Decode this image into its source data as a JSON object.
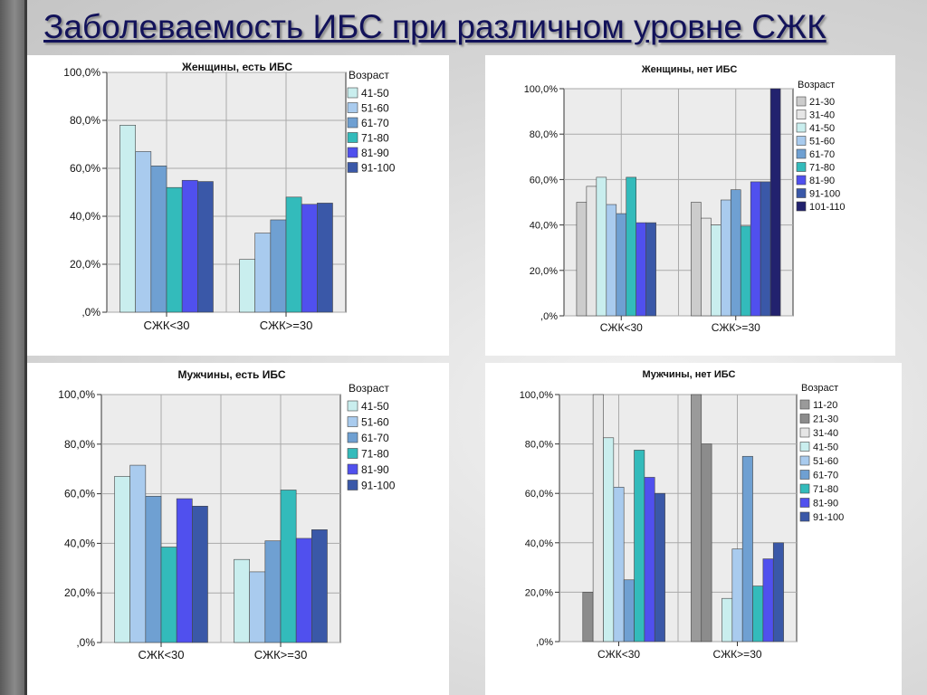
{
  "slide": {
    "title": "Заболеваемость ИБС при различном уровне СЖК"
  },
  "chart_data": [
    {
      "type": "bar",
      "title": "Женщины, есть ИБС",
      "categories": [
        "СЖК<30",
        "СЖК>=30"
      ],
      "yticks": [
        "100,0%",
        "80,0%",
        "60,0%",
        "40,0%",
        "20,0%",
        ",0%"
      ],
      "ylim": [
        0,
        100
      ],
      "legend_title": "Возраст",
      "legend_position": "right",
      "grid": true,
      "series": [
        {
          "name": "41-50",
          "color": "#c9eeee",
          "values": [
            78,
            22
          ]
        },
        {
          "name": "51-60",
          "color": "#a9cbee",
          "values": [
            67,
            33
          ]
        },
        {
          "name": "61-70",
          "color": "#6fa0d2",
          "values": [
            61,
            38.5
          ]
        },
        {
          "name": "71-80",
          "color": "#33bbbb",
          "values": [
            52,
            48
          ]
        },
        {
          "name": "81-90",
          "color": "#5050ee",
          "values": [
            55,
            45
          ]
        },
        {
          "name": "91-100",
          "color": "#3a58a8",
          "values": [
            54.5,
            45.5
          ]
        }
      ]
    },
    {
      "type": "bar",
      "title": "Женщины, нет ИБС",
      "categories": [
        "СЖК<30",
        "СЖК>=30"
      ],
      "yticks": [
        "100,0%",
        "80,0%",
        "60,0%",
        "40,0%",
        "20,0%",
        ",0%"
      ],
      "ylim": [
        0,
        100
      ],
      "legend_title": "Возраст",
      "legend_position": "right",
      "grid": true,
      "series": [
        {
          "name": "21-30",
          "color": "#cccccc",
          "values": [
            50,
            50
          ]
        },
        {
          "name": "31-40",
          "color": "#e6e6e6",
          "values": [
            57,
            43
          ]
        },
        {
          "name": "41-50",
          "color": "#c9eeee",
          "values": [
            61,
            40
          ]
        },
        {
          "name": "51-60",
          "color": "#a9cbee",
          "values": [
            49,
            51
          ]
        },
        {
          "name": "61-70",
          "color": "#6fa0d2",
          "values": [
            45,
            55.5
          ]
        },
        {
          "name": "71-80",
          "color": "#33bbbb",
          "values": [
            61,
            39.5
          ]
        },
        {
          "name": "81-90",
          "color": "#5050ee",
          "values": [
            41,
            59
          ]
        },
        {
          "name": "91-100",
          "color": "#3a58a8",
          "values": [
            41,
            59
          ]
        },
        {
          "name": "101-110",
          "color": "#22226e",
          "values": [
            0,
            100
          ]
        }
      ]
    },
    {
      "type": "bar",
      "title": "Мужчины, есть ИБС",
      "categories": [
        "СЖК<30",
        "СЖК>=30"
      ],
      "yticks": [
        "100,0%",
        "80,0%",
        "60,0%",
        "40,0%",
        "20,0%",
        ",0%"
      ],
      "ylim": [
        0,
        100
      ],
      "legend_title": "Возраст",
      "legend_position": "right",
      "grid": true,
      "series": [
        {
          "name": "41-50",
          "color": "#c9eeee",
          "values": [
            67,
            33.5
          ]
        },
        {
          "name": "51-60",
          "color": "#a9cbee",
          "values": [
            71.5,
            28.5
          ]
        },
        {
          "name": "61-70",
          "color": "#6fa0d2",
          "values": [
            59,
            41
          ]
        },
        {
          "name": "71-80",
          "color": "#33bbbb",
          "values": [
            38.5,
            61.5
          ]
        },
        {
          "name": "81-90",
          "color": "#5050ee",
          "values": [
            58,
            42
          ]
        },
        {
          "name": "91-100",
          "color": "#3a58a8",
          "values": [
            55,
            45.5
          ]
        }
      ]
    },
    {
      "type": "bar",
      "title": "Мужчины, нет ИБС",
      "categories": [
        "СЖК<30",
        "СЖК>=30"
      ],
      "yticks": [
        "100,0%",
        "80,0%",
        "60,0%",
        "40,0%",
        "20,0%",
        ",0%"
      ],
      "ylim": [
        0,
        100
      ],
      "legend_title": "Возраст",
      "legend_position": "right",
      "grid": true,
      "series": [
        {
          "name": "11-20",
          "color": "#9a9a9a",
          "values": [
            0,
            100
          ]
        },
        {
          "name": "21-30",
          "color": "#8c8c8c",
          "values": [
            20,
            80
          ]
        },
        {
          "name": "31-40",
          "color": "#e6e6e6",
          "values": [
            100,
            0
          ]
        },
        {
          "name": "41-50",
          "color": "#c9eeee",
          "values": [
            82.5,
            17.5
          ]
        },
        {
          "name": "51-60",
          "color": "#a9cbee",
          "values": [
            62.5,
            37.5
          ]
        },
        {
          "name": "61-70",
          "color": "#6fa0d2",
          "values": [
            25,
            75
          ]
        },
        {
          "name": "71-80",
          "color": "#33bbbb",
          "values": [
            77.5,
            22.5
          ]
        },
        {
          "name": "81-90",
          "color": "#5050ee",
          "values": [
            66.5,
            33.5
          ]
        },
        {
          "name": "91-100",
          "color": "#3a58a8",
          "values": [
            60,
            40
          ]
        }
      ]
    }
  ]
}
